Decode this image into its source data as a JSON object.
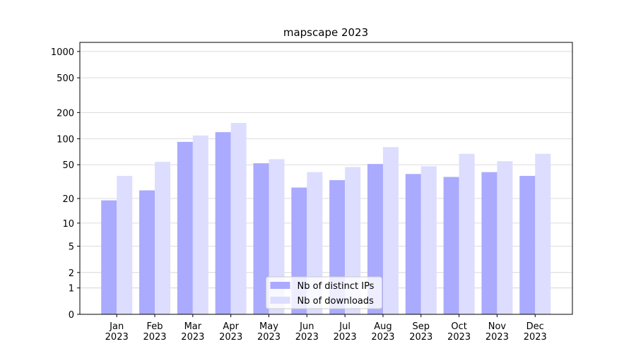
{
  "chart_data": {
    "type": "bar",
    "title": "mapscape 2023",
    "categories": [
      "Jan 2023",
      "Feb 2023",
      "Mar 2023",
      "Apr 2023",
      "May 2023",
      "Jun 2023",
      "Jul 2023",
      "Aug 2023",
      "Sep 2023",
      "Oct 2023",
      "Nov 2023",
      "Dec 2023"
    ],
    "series": [
      {
        "name": "Nb of distinct IPs",
        "color": "#aaaaff",
        "values": [
          19,
          25,
          92,
          119,
          52,
          27,
          33,
          51,
          39,
          36,
          41,
          37
        ]
      },
      {
        "name": "Nb of downloads",
        "color": "#ddddff",
        "values": [
          37,
          54,
          109,
          152,
          58,
          41,
          47,
          80,
          48,
          67,
          55,
          67
        ]
      }
    ],
    "yscale": "log1p",
    "ylim": [
      0,
      1270
    ],
    "yticks": [
      0,
      1,
      2,
      5,
      10,
      20,
      50,
      100,
      200,
      500,
      1000
    ],
    "grid": true,
    "legend": "lower center"
  }
}
